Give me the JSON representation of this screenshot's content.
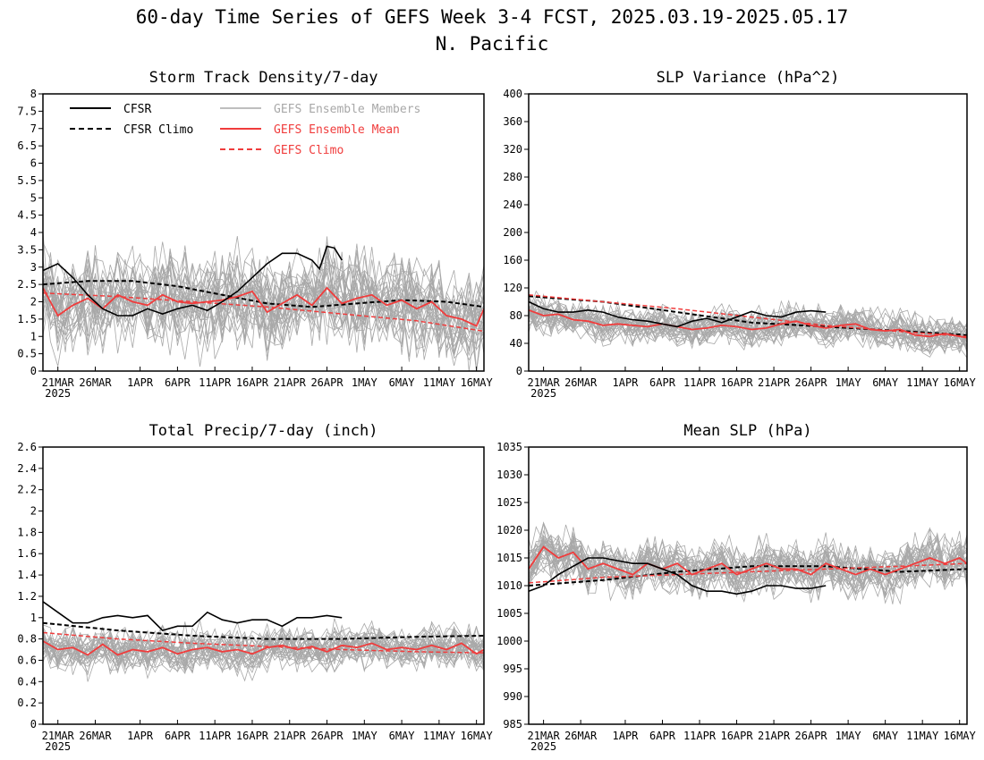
{
  "figure": {
    "title_line1": "60-day Time Series of GEFS Week 3-4 FCST, 2025.03.19-2025.05.17",
    "title_line2": "N. Pacific",
    "x_tick_labels": [
      "21MAR",
      "26MAR",
      "1APR",
      "6APR",
      "11APR",
      "16APR",
      "21APR",
      "26APR",
      "1MAY",
      "6MAY",
      "11MAY",
      "16MAY"
    ],
    "x_year_label": "2025",
    "legend": {
      "cfsr": "CFSR",
      "cfsr_climo": "CFSR Climo",
      "gefs_members": "GEFS Ensemble Members",
      "gefs_mean": "GEFS Ensemble Mean",
      "gefs_climo": "GEFS Climo"
    },
    "colors": {
      "cfsr": "#000000",
      "members": "#a8a8a8",
      "gefs_mean": "#f03c3c",
      "gefs_climo": "#f03c3c"
    }
  },
  "chart_data": [
    {
      "type": "line",
      "title": "Storm Track Density/7-day",
      "ylim": [
        0,
        8
      ],
      "y_ticks": [
        "0",
        "0.5",
        "1",
        "1.5",
        "2",
        "2.5",
        "3",
        "3.5",
        "4",
        "4.5",
        "5",
        "5.5",
        "6",
        "6.5",
        "7",
        "7.5",
        "8"
      ],
      "xlim_days": [
        0,
        59
      ],
      "cfsr": {
        "x": [
          0,
          2,
          4,
          6,
          8,
          10,
          12,
          14,
          16,
          18,
          20,
          22,
          24,
          26,
          28,
          30,
          32,
          34,
          36,
          37,
          38,
          39,
          40
        ],
        "y": [
          2.9,
          3.1,
          2.7,
          2.2,
          1.8,
          1.6,
          1.6,
          1.8,
          1.65,
          1.8,
          1.9,
          1.75,
          2.0,
          2.3,
          2.7,
          3.1,
          3.4,
          3.4,
          3.2,
          2.95,
          3.6,
          3.55,
          3.2
        ]
      },
      "cfsr_climo": {
        "x": [
          0,
          6,
          12,
          18,
          24,
          30,
          36,
          42,
          48,
          54,
          59
        ],
        "y": [
          2.5,
          2.6,
          2.6,
          2.45,
          2.2,
          1.95,
          1.85,
          1.95,
          2.05,
          2.0,
          1.85
        ]
      },
      "gefs_mean": {
        "x": [
          0,
          2,
          4,
          6,
          8,
          10,
          12,
          14,
          16,
          18,
          20,
          22,
          24,
          26,
          28,
          30,
          32,
          34,
          36,
          38,
          40,
          42,
          44,
          46,
          48,
          50,
          52,
          54,
          56,
          58,
          59
        ],
        "y": [
          2.4,
          1.6,
          1.9,
          2.1,
          1.8,
          2.2,
          2.0,
          1.9,
          2.2,
          2.0,
          1.95,
          2.0,
          2.05,
          2.15,
          2.3,
          1.7,
          1.95,
          2.2,
          1.9,
          2.4,
          1.95,
          2.1,
          2.2,
          1.9,
          2.05,
          1.8,
          2.0,
          1.6,
          1.5,
          1.3,
          1.8
        ]
      },
      "gefs_climo": {
        "x": [
          0,
          10,
          20,
          30,
          40,
          50,
          59
        ],
        "y": [
          2.25,
          2.15,
          2.0,
          1.85,
          1.65,
          1.45,
          1.15
        ]
      },
      "members": {
        "count": 30,
        "spread": 1.0
      }
    },
    {
      "type": "line",
      "title": "SLP Variance (hPa^2)",
      "ylim": [
        0,
        400
      ],
      "y_ticks": [
        "0",
        "40",
        "80",
        "120",
        "160",
        "200",
        "240",
        "280",
        "320",
        "360",
        "400"
      ],
      "xlim_days": [
        0,
        59
      ],
      "cfsr": {
        "x": [
          0,
          2,
          4,
          6,
          8,
          10,
          12,
          14,
          16,
          18,
          20,
          22,
          24,
          26,
          28,
          30,
          32,
          34,
          36,
          38,
          40
        ],
        "y": [
          100,
          90,
          85,
          85,
          88,
          85,
          78,
          74,
          72,
          68,
          64,
          72,
          76,
          70,
          78,
          86,
          80,
          78,
          85,
          87,
          85
        ]
      },
      "cfsr_climo": {
        "x": [
          0,
          10,
          20,
          30,
          40,
          50,
          59
        ],
        "y": [
          108,
          100,
          85,
          70,
          64,
          58,
          52
        ]
      },
      "gefs_mean": {
        "x": [
          0,
          2,
          4,
          6,
          8,
          10,
          12,
          14,
          16,
          18,
          20,
          22,
          24,
          26,
          28,
          30,
          32,
          34,
          36,
          38,
          40,
          42,
          44,
          46,
          48,
          50,
          52,
          54,
          56,
          58,
          59
        ],
        "y": [
          88,
          80,
          82,
          74,
          72,
          66,
          68,
          66,
          64,
          68,
          64,
          60,
          62,
          66,
          64,
          60,
          62,
          68,
          72,
          66,
          62,
          66,
          68,
          60,
          58,
          60,
          52,
          50,
          54,
          50,
          48
        ]
      },
      "gefs_climo": {
        "x": [
          0,
          10,
          20,
          30,
          40,
          50,
          59
        ],
        "y": [
          110,
          100,
          90,
          78,
          66,
          57,
          50
        ]
      },
      "members": {
        "count": 30,
        "spread": 20
      }
    },
    {
      "type": "line",
      "title": "Total Precip/7-day (inch)",
      "ylim": [
        0,
        2.6
      ],
      "y_ticks": [
        "0",
        "0.2",
        "0.4",
        "0.6",
        "0.8",
        "1",
        "1.2",
        "1.4",
        "1.6",
        "1.8",
        "2",
        "2.2",
        "2.4",
        "2.6"
      ],
      "xlim_days": [
        0,
        59
      ],
      "cfsr": {
        "x": [
          0,
          2,
          4,
          6,
          8,
          10,
          12,
          14,
          16,
          18,
          20,
          22,
          24,
          26,
          28,
          30,
          32,
          34,
          36,
          38,
          40
        ],
        "y": [
          1.15,
          1.05,
          0.95,
          0.95,
          1.0,
          1.02,
          1.0,
          1.02,
          0.88,
          0.92,
          0.92,
          1.05,
          0.98,
          0.95,
          0.98,
          0.98,
          0.92,
          1.0,
          1.0,
          1.02,
          1.0
        ]
      },
      "cfsr_climo": {
        "x": [
          0,
          10,
          20,
          30,
          40,
          50,
          59
        ],
        "y": [
          0.95,
          0.88,
          0.83,
          0.8,
          0.8,
          0.82,
          0.83
        ]
      },
      "gefs_mean": {
        "x": [
          0,
          2,
          4,
          6,
          8,
          10,
          12,
          14,
          16,
          18,
          20,
          22,
          24,
          26,
          28,
          30,
          32,
          34,
          36,
          38,
          40,
          42,
          44,
          46,
          48,
          50,
          52,
          54,
          56,
          58,
          59
        ],
        "y": [
          0.78,
          0.7,
          0.72,
          0.65,
          0.75,
          0.65,
          0.7,
          0.68,
          0.72,
          0.66,
          0.7,
          0.72,
          0.68,
          0.7,
          0.66,
          0.72,
          0.74,
          0.7,
          0.73,
          0.68,
          0.74,
          0.72,
          0.76,
          0.7,
          0.72,
          0.7,
          0.74,
          0.7,
          0.76,
          0.66,
          0.7
        ]
      },
      "gefs_climo": {
        "x": [
          0,
          10,
          20,
          30,
          40,
          50,
          59
        ],
        "y": [
          0.86,
          0.8,
          0.76,
          0.73,
          0.7,
          0.68,
          0.67
        ]
      },
      "members": {
        "count": 30,
        "spread": 0.15
      }
    },
    {
      "type": "line",
      "title": "Mean SLP (hPa)",
      "ylim": [
        985,
        1035
      ],
      "y_ticks": [
        "985",
        "990",
        "995",
        "1000",
        "1005",
        "1010",
        "1015",
        "1020",
        "1025",
        "1030",
        "1035"
      ],
      "xlim_days": [
        0,
        59
      ],
      "cfsr": {
        "x": [
          0,
          2,
          4,
          6,
          8,
          10,
          12,
          14,
          16,
          18,
          20,
          22,
          24,
          26,
          28,
          30,
          32,
          34,
          36,
          38,
          40
        ],
        "y": [
          1009,
          1010,
          1012,
          1013.5,
          1015,
          1015,
          1014.5,
          1014,
          1014,
          1013,
          1012,
          1010,
          1009,
          1009,
          1008.5,
          1009,
          1010,
          1010,
          1009.5,
          1009.5,
          1010
        ]
      },
      "cfsr_climo": {
        "x": [
          0,
          10,
          20,
          30,
          40,
          50,
          59
        ],
        "y": [
          1010,
          1011,
          1012.5,
          1013.5,
          1013.5,
          1012.5,
          1013
        ]
      },
      "gefs_mean": {
        "x": [
          0,
          2,
          4,
          6,
          8,
          10,
          12,
          14,
          16,
          18,
          20,
          22,
          24,
          26,
          28,
          30,
          32,
          34,
          36,
          38,
          40,
          42,
          44,
          46,
          48,
          50,
          52,
          54,
          56,
          58,
          59
        ],
        "y": [
          1013,
          1017,
          1015,
          1016,
          1013,
          1014,
          1013,
          1012,
          1014,
          1013,
          1014,
          1012,
          1013,
          1014,
          1012,
          1013,
          1014,
          1013,
          1013,
          1012,
          1014,
          1013,
          1012,
          1013,
          1012,
          1013,
          1014,
          1015,
          1014,
          1015,
          1014
        ]
      },
      "gefs_climo": {
        "x": [
          0,
          10,
          20,
          30,
          40,
          50,
          59
        ],
        "y": [
          1010.5,
          1011.5,
          1012,
          1012.5,
          1013,
          1013.5,
          1014
        ]
      },
      "members": {
        "count": 30,
        "spread": 3.5
      }
    }
  ]
}
